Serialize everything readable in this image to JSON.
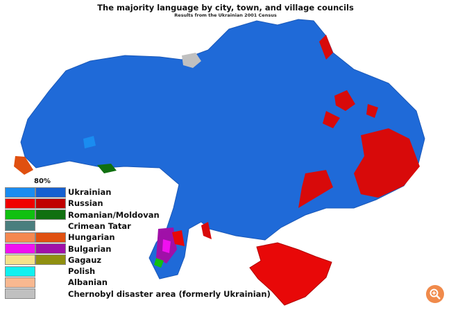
{
  "title": "The majority language by city, town, and village councils",
  "subtitle": "Results from the Ukrainian 2001 Census",
  "legend": {
    "header": "80%",
    "items": [
      {
        "label": "Ukrainian",
        "colors": [
          "#1a8cf0",
          "#1560d0"
        ]
      },
      {
        "label": "Russian",
        "colors": [
          "#f00000",
          "#c00000"
        ]
      },
      {
        "label": "Romanian/Moldovan",
        "colors": [
          "#10c010",
          "#107010"
        ]
      },
      {
        "label": "Crimean Tatar",
        "colors": [
          "#4a7e7e",
          null
        ]
      },
      {
        "label": "Hungarian",
        "colors": [
          "#f58850",
          "#e05010"
        ]
      },
      {
        "label": "Bulgarian",
        "colors": [
          "#f010f0",
          "#a010a8"
        ]
      },
      {
        "label": "Gagauz",
        "colors": [
          "#f5e28a",
          "#909010"
        ]
      },
      {
        "label": "Polish",
        "colors": [
          "#10f0f0",
          null
        ]
      },
      {
        "label": "Albanian",
        "colors": [
          "#f8b890",
          null
        ]
      },
      {
        "label": "Chernobyl disaster area (formerly Ukrainian)",
        "colors": [
          "#c0c0c0",
          null
        ]
      }
    ]
  },
  "zoom_icon": "zoom-in-icon"
}
